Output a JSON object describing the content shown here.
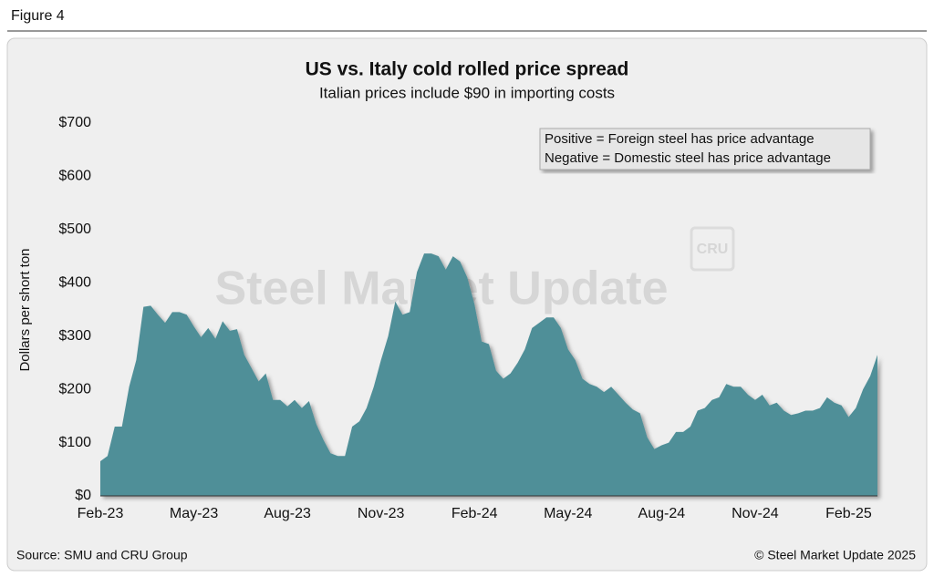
{
  "figure_label": "Figure 4",
  "source": "Source: SMU and CRU Group",
  "copyright": "© Steel Market Update 2025",
  "watermark": "Steel Market Update",
  "watermark_logo": "CRU",
  "chart_data": {
    "type": "area",
    "title": "US vs. Italy cold rolled price spread",
    "subtitle": "Italian prices include $90 in importing costs",
    "y_label": "Dollars per short ton",
    "annotation": [
      "Positive = Foreign steel has price advantage",
      "Negative = Domestic steel has price advantage"
    ],
    "color": "#4f8f98",
    "categories": [
      "Feb-23",
      null,
      null,
      null,
      null,
      null,
      null,
      null,
      null,
      null,
      null,
      null,
      null,
      "May-23",
      null,
      null,
      null,
      null,
      null,
      null,
      null,
      null,
      null,
      null,
      null,
      null,
      "Aug-23",
      null,
      null,
      null,
      null,
      null,
      null,
      null,
      null,
      null,
      null,
      null,
      null,
      "Nov-23",
      null,
      null,
      null,
      null,
      null,
      null,
      null,
      null,
      null,
      null,
      null,
      null,
      "Feb-24",
      null,
      null,
      null,
      null,
      null,
      null,
      null,
      null,
      null,
      null,
      null,
      null,
      "May-24",
      null,
      null,
      null,
      null,
      null,
      null,
      null,
      null,
      null,
      null,
      null,
      null,
      "Aug-24",
      null,
      null,
      null,
      null,
      null,
      null,
      null,
      null,
      null,
      null,
      null,
      null,
      "Nov-24",
      null,
      null,
      null,
      null,
      null,
      null,
      null,
      null,
      null,
      null,
      null,
      null,
      "Feb-25",
      null,
      null,
      null,
      null
    ],
    "values": [
      65,
      75,
      130,
      130,
      205,
      255,
      355,
      357,
      340,
      325,
      345,
      345,
      340,
      318,
      298,
      315,
      295,
      328,
      310,
      313,
      265,
      240,
      215,
      230,
      180,
      180,
      168,
      180,
      165,
      178,
      135,
      105,
      80,
      75,
      75,
      130,
      140,
      165,
      205,
      255,
      300,
      365,
      340,
      345,
      420,
      455,
      455,
      450,
      425,
      450,
      440,
      410,
      360,
      290,
      285,
      235,
      220,
      230,
      250,
      275,
      315,
      325,
      335,
      335,
      315,
      275,
      255,
      220,
      210,
      205,
      195,
      205,
      190,
      175,
      162,
      155,
      110,
      88,
      95,
      100,
      120,
      120,
      130,
      160,
      165,
      180,
      185,
      210,
      205,
      205,
      190,
      180,
      190,
      170,
      175,
      160,
      152,
      155,
      160,
      160,
      165,
      185,
      175,
      170,
      148,
      165,
      200,
      225,
      265
    ],
    "ylim": [
      0,
      700
    ],
    "yticks": [
      {
        "value": 0,
        "label": "$0"
      },
      {
        "value": 100,
        "label": "$100"
      },
      {
        "value": 200,
        "label": "$200"
      },
      {
        "value": 300,
        "label": "$300"
      },
      {
        "value": 400,
        "label": "$400"
      },
      {
        "value": 500,
        "label": "$500"
      },
      {
        "value": 600,
        "label": "$600"
      },
      {
        "value": 700,
        "label": "$700"
      }
    ],
    "grid": false
  }
}
